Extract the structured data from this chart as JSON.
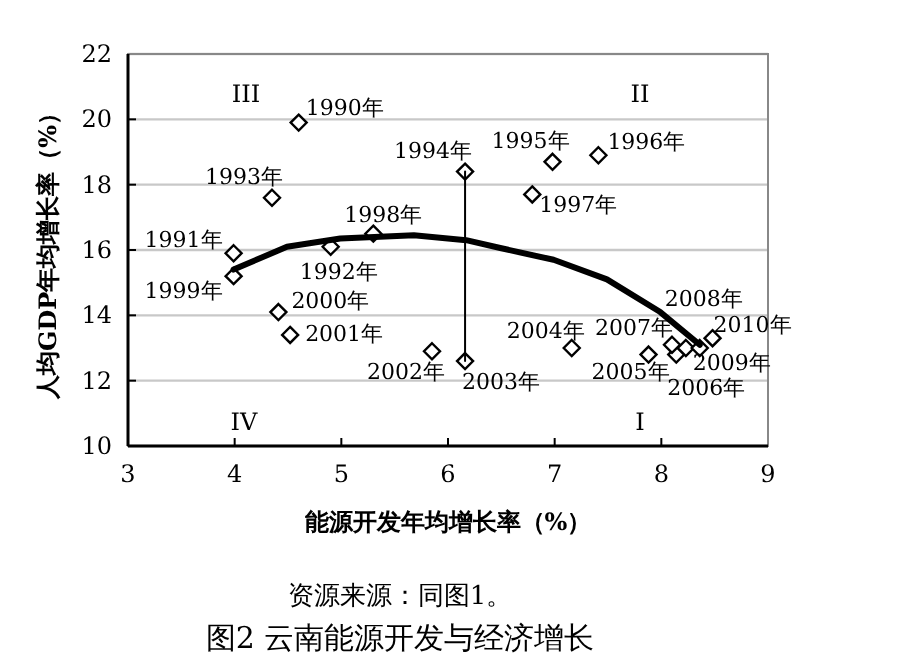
{
  "chart_data": {
    "type": "scatter",
    "title": "图2 云南能源开发与经济增长",
    "xlabel": "能源开发年均增长率（%）",
    "ylabel": "人均GDP年均增长率（%）",
    "xlim": [
      3,
      9
    ],
    "xticks": [
      3,
      4,
      5,
      6,
      7,
      8,
      9
    ],
    "ylim": [
      10,
      22
    ],
    "yticks": [
      10,
      12,
      14,
      16,
      18,
      20,
      22
    ],
    "grid": "y",
    "series": [
      {
        "marker": "diamond",
        "color": "#000000",
        "x": [
          4.6,
          3.99,
          4.9,
          4.35,
          6.16,
          6.98,
          7.41,
          6.79,
          5.3,
          3.99,
          4.41,
          4.52,
          5.85,
          6.16,
          7.16,
          7.88,
          8.14,
          8.1,
          8.23,
          8.36,
          8.48
        ],
        "values": [
          19.9,
          15.9,
          16.1,
          17.6,
          18.4,
          18.7,
          18.9,
          17.7,
          16.5,
          15.2,
          14.1,
          13.4,
          12.9,
          12.6,
          13.0,
          12.8,
          12.8,
          13.1,
          13.0,
          13.0,
          13.3
        ]
      },
      {
        "type": "line",
        "marker": "none",
        "line_style": "solid",
        "color": "#000000",
        "x": [
          3.99,
          4.49,
          4.99,
          5.68,
          6.17,
          6.49,
          6.99,
          7.49,
          7.99,
          8.36
        ],
        "values": [
          15.4,
          16.1,
          16.35,
          16.45,
          16.3,
          16.06,
          15.7,
          15.1,
          14.1,
          13.1
        ]
      },
      {
        "type": "line",
        "marker": "none",
        "line_style": "solid",
        "color": "#000000",
        "x": [
          6.16,
          6.16
        ],
        "values": [
          18.4,
          12.6
        ]
      }
    ],
    "annotations": [
      {
        "text": "1990年",
        "x": 4.6,
        "y": 19.9
      },
      {
        "text": "1991年",
        "x": 3.99,
        "y": 15.9
      },
      {
        "text": "1992年",
        "x": 4.9,
        "y": 16.1
      },
      {
        "text": "1993年",
        "x": 4.35,
        "y": 17.6
      },
      {
        "text": "1994年",
        "x": 6.16,
        "y": 18.4
      },
      {
        "text": "1995年",
        "x": 6.98,
        "y": 18.7
      },
      {
        "text": "1996年",
        "x": 7.41,
        "y": 18.9
      },
      {
        "text": "1997年",
        "x": 6.79,
        "y": 17.7
      },
      {
        "text": "1998年",
        "x": 5.3,
        "y": 16.5
      },
      {
        "text": "1999年",
        "x": 3.99,
        "y": 15.2
      },
      {
        "text": "2000年",
        "x": 4.41,
        "y": 14.1
      },
      {
        "text": "2001年",
        "x": 4.52,
        "y": 13.4
      },
      {
        "text": "2002年",
        "x": 5.85,
        "y": 12.9
      },
      {
        "text": "2003年",
        "x": 6.16,
        "y": 12.6
      },
      {
        "text": "2004年",
        "x": 7.16,
        "y": 13.0
      },
      {
        "text": "2005年",
        "x": 7.88,
        "y": 12.8
      },
      {
        "text": "2006年",
        "x": 8.14,
        "y": 12.8
      },
      {
        "text": "2007年",
        "x": 8.1,
        "y": 13.1
      },
      {
        "text": "2008年",
        "x": 8.23,
        "y": 13.0
      },
      {
        "text": "2009年",
        "x": 8.36,
        "y": 13.0
      },
      {
        "text": "2010年",
        "x": 8.48,
        "y": 13.3
      },
      "III",
      "II",
      "IV",
      "I",
      "资源来源：同图1。"
    ]
  }
}
